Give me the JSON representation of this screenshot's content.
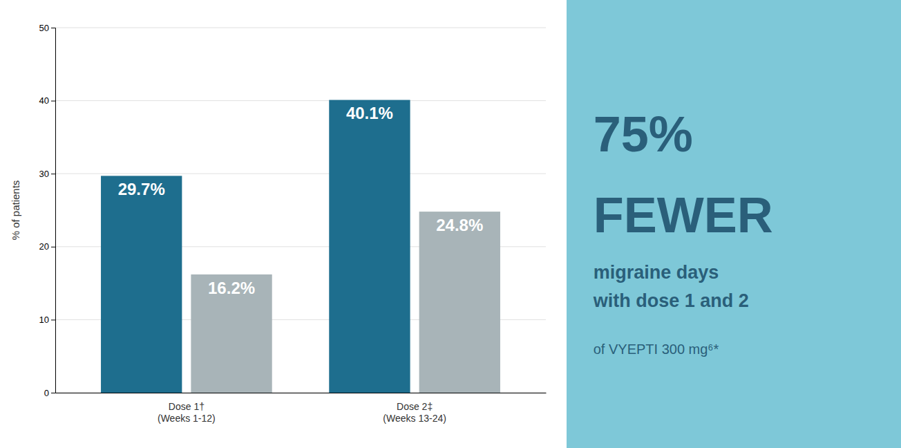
{
  "chart_data": {
    "type": "bar",
    "categories": [
      "Dose 1†\n(Weeks 1-12)",
      "Dose 2‡\n(Weeks 13-24)"
    ],
    "series": [
      {
        "color": "#1e6e8e",
        "values": [
          29.7,
          40.1
        ],
        "value_labels": [
          "29.7%",
          "40.1%"
        ]
      },
      {
        "color": "#a8b4b8",
        "values": [
          16.2,
          24.8
        ],
        "value_labels": [
          "16.2%",
          "24.8%"
        ]
      }
    ],
    "y_label": "% of patients",
    "ylim": [
      0,
      50
    ],
    "yticks": [
      0,
      10,
      20,
      30,
      40,
      50
    ],
    "grid": true,
    "data_labels": true,
    "annotations": [
      "75%",
      "FEWER",
      "migraine days\nwith dose 1 and 2",
      "of VYEPTI 300 mg⁶*"
    ]
  }
}
